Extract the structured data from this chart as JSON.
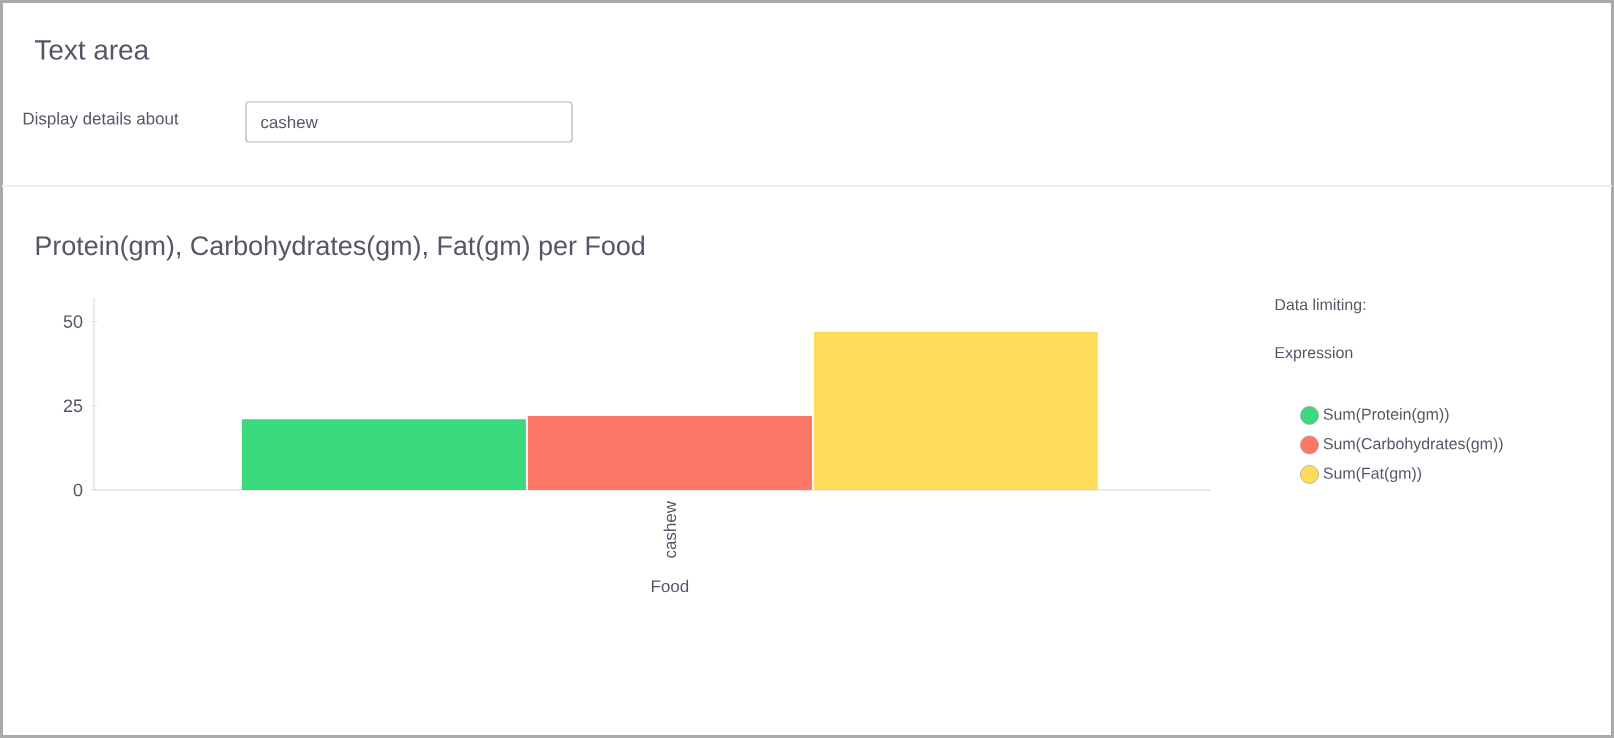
{
  "chart_data": {
    "type": "bar",
    "title": "Protein(gm), Carbohydrates(gm), Fat(gm) per Food",
    "xlabel": "Food",
    "categories": [
      "cashew"
    ],
    "series": [
      {
        "name": "Sum(Protein(gm))",
        "color": "#3ad97c",
        "values": [
          21
        ]
      },
      {
        "name": "Sum(Carbohydrates(gm))",
        "color": "#fd7766",
        "values": [
          22
        ]
      },
      {
        "name": "Sum(Fat(gm))",
        "color": "#fedc5a",
        "values": [
          47
        ]
      }
    ],
    "ylim": [
      0,
      57
    ],
    "yticks": [
      0,
      25,
      50
    ],
    "legend": "right",
    "legend_title": "Expression",
    "annotations": [
      "Text area",
      "Display details about",
      "cashew",
      "Data limiting:"
    ]
  }
}
